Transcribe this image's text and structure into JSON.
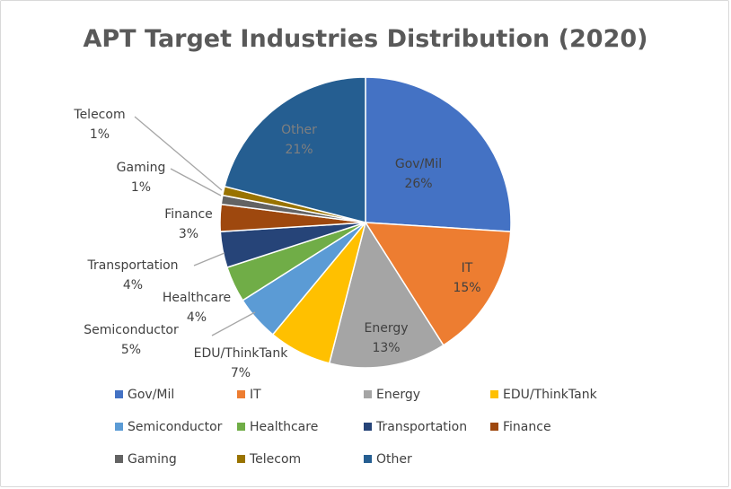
{
  "chart_data": {
    "type": "pie",
    "title": "APT Target Industries Distribution (2020)",
    "categories": [
      "Gov/Mil",
      "IT",
      "Energy",
      "EDU/ThinkTank",
      "Semiconductor",
      "Healthcare",
      "Transportation",
      "Finance",
      "Gaming",
      "Telecom",
      "Other"
    ],
    "values": [
      26,
      15,
      13,
      7,
      5,
      4,
      4,
      3,
      1,
      1,
      21
    ],
    "value_labels": [
      "26%",
      "15%",
      "13%",
      "7%",
      "5%",
      "4%",
      "4%",
      "3%",
      "1%",
      "1%",
      "21%"
    ],
    "colors": [
      "#4472C4",
      "#ED7D31",
      "#A5A5A5",
      "#FFC000",
      "#5B9BD5",
      "#70AD47",
      "#264478",
      "#9E480E",
      "#636363",
      "#997300",
      "#255E91"
    ],
    "label_placement": [
      "inside",
      "inside",
      "inside",
      "outside",
      "outside",
      "outside",
      "outside",
      "outside",
      "outside",
      "outside",
      "inside"
    ],
    "inside_label_colors": [
      "#404040",
      "#404040",
      "#404040",
      "#404040",
      "#404040",
      "#404040",
      "#404040",
      "#404040",
      "#404040",
      "#404040",
      "#7f7f7f"
    ],
    "legend_position": "bottom"
  }
}
